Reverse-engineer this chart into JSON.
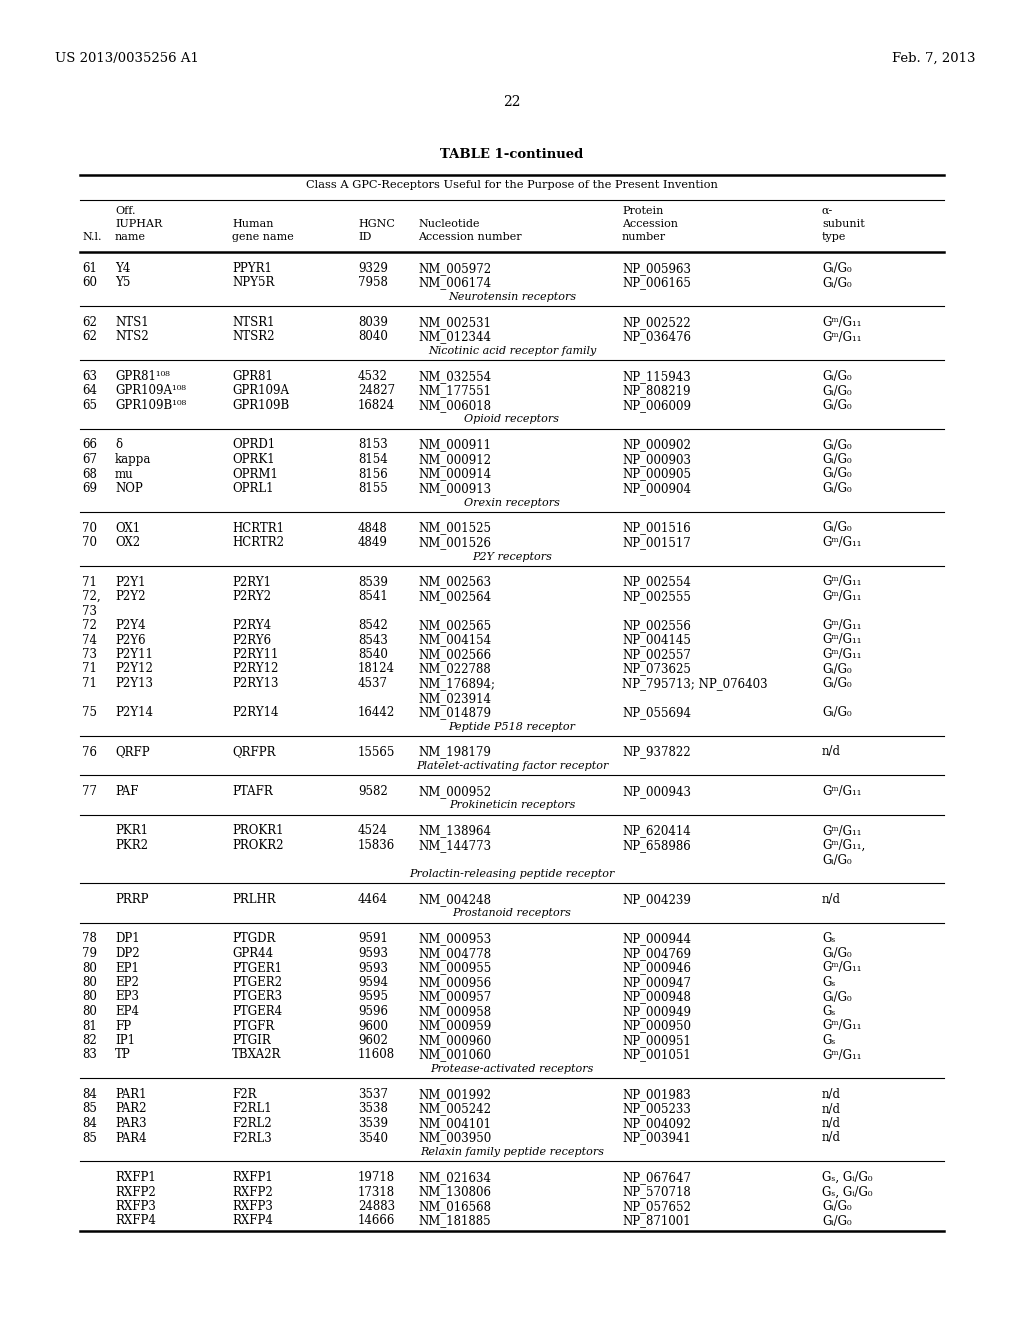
{
  "header_left": "US 2013/0035256 A1",
  "header_right": "Feb. 7, 2013",
  "page_number": "22",
  "table_title": "TABLE 1-continued",
  "table_subtitle": "Class A GPC-Receptors Useful for the Purpose of the Present Invention",
  "sections": [
    {
      "rows": [
        [
          "61",
          "Y4",
          "PPYR1",
          "9329",
          "NM_005972",
          "NP_005963",
          "Gᵢ/G₀"
        ],
        [
          "60",
          "Y5",
          "NPY5R",
          "7958",
          "NM_006174",
          "NP_006165",
          "Gᵢ/G₀"
        ]
      ],
      "section_label": "Neurotensin receptors"
    },
    {
      "rows": [
        [
          "62",
          "NTS1",
          "NTSR1",
          "8039",
          "NM_002531",
          "NP_002522",
          "Gᵐ/G₁₁"
        ],
        [
          "62",
          "NTS2",
          "NTSR2",
          "8040",
          "NM_012344",
          "NP_036476",
          "Gᵐ/G₁₁"
        ]
      ],
      "section_label": "Nicotinic acid receptor family"
    },
    {
      "rows": [
        [
          "63",
          "GPR81¹⁰⁸",
          "GPR81",
          "4532",
          "NM_032554",
          "NP_115943",
          "Gᵢ/G₀"
        ],
        [
          "64",
          "GPR109A¹⁰⁸",
          "GPR109A",
          "24827",
          "NM_177551",
          "NP_808219",
          "Gᵢ/G₀"
        ],
        [
          "65",
          "GPR109B¹⁰⁸",
          "GPR109B",
          "16824",
          "NM_006018",
          "NP_006009",
          "Gᵢ/G₀"
        ]
      ],
      "section_label": "Opioid receptors"
    },
    {
      "rows": [
        [
          "66",
          "δ",
          "OPRD1",
          "8153",
          "NM_000911",
          "NP_000902",
          "Gᵢ/G₀"
        ],
        [
          "67",
          "kappa",
          "OPRK1",
          "8154",
          "NM_000912",
          "NP_000903",
          "Gᵢ/G₀"
        ],
        [
          "68",
          "mu",
          "OPRM1",
          "8156",
          "NM_000914",
          "NP_000905",
          "Gᵢ/G₀"
        ],
        [
          "69",
          "NOP",
          "OPRL1",
          "8155",
          "NM_000913",
          "NP_000904",
          "Gᵢ/G₀"
        ]
      ],
      "section_label": "Orexin receptors"
    },
    {
      "rows": [
        [
          "70",
          "OX1",
          "HCRTR1",
          "4848",
          "NM_001525",
          "NP_001516",
          "Gᵢ/G₀"
        ],
        [
          "70",
          "OX2",
          "HCRTR2",
          "4849",
          "NM_001526",
          "NP_001517",
          "Gᵐ/G₁₁"
        ]
      ],
      "section_label": "P2Y receptors"
    },
    {
      "rows": [
        [
          "71",
          "P2Y1",
          "P2RY1",
          "8539",
          "NM_002563",
          "NP_002554",
          "Gᵐ/G₁₁"
        ],
        [
          "72,\n73",
          "P2Y2",
          "P2RY2",
          "8541",
          "NM_002564",
          "NP_002555",
          "Gᵐ/G₁₁"
        ],
        [
          "72",
          "P2Y4",
          "P2RY4",
          "8542",
          "NM_002565",
          "NP_002556",
          "Gᵐ/G₁₁"
        ],
        [
          "74",
          "P2Y6",
          "P2RY6",
          "8543",
          "NM_004154",
          "NP_004145",
          "Gᵐ/G₁₁"
        ],
        [
          "73",
          "P2Y11",
          "P2RY11",
          "8540",
          "NM_002566",
          "NP_002557",
          "Gᵐ/G₁₁"
        ],
        [
          "71",
          "P2Y12",
          "P2RY12",
          "18124",
          "NM_022788",
          "NP_073625",
          "Gᵢ/G₀"
        ],
        [
          "71",
          "P2Y13",
          "P2RY13",
          "4537",
          "NM_176894;\nNM_023914",
          "NP_795713; NP_076403",
          "Gᵢ/G₀"
        ],
        [
          "75",
          "P2Y14",
          "P2RY14",
          "16442",
          "NM_014879",
          "NP_055694",
          "Gᵢ/G₀"
        ]
      ],
      "section_label": "Peptide P518 receptor"
    },
    {
      "rows": [
        [
          "76",
          "QRFP",
          "QRFPR",
          "15565",
          "NM_198179",
          "NP_937822",
          "n/d"
        ]
      ],
      "section_label": "Platelet-activating factor receptor"
    },
    {
      "rows": [
        [
          "77",
          "PAF",
          "PTAFR",
          "9582",
          "NM_000952",
          "NP_000943",
          "Gᵐ/G₁₁"
        ]
      ],
      "section_label": "Prokineticin receptors"
    },
    {
      "rows": [
        [
          "",
          "PKR1",
          "PROKR1",
          "4524",
          "NM_138964",
          "NP_620414",
          "Gᵐ/G₁₁"
        ],
        [
          "",
          "PKR2",
          "PROKR2",
          "15836",
          "NM_144773",
          "NP_658986",
          "Gᵐ/G₁₁,\nGᵢ/G₀"
        ]
      ],
      "section_label": "Prolactin-releasing peptide receptor"
    },
    {
      "rows": [
        [
          "",
          "PRRP",
          "PRLHR",
          "4464",
          "NM_004248",
          "NP_004239",
          "n/d"
        ]
      ],
      "section_label": "Prostanoid receptors"
    },
    {
      "rows": [
        [
          "78",
          "DP1",
          "PTGDR",
          "9591",
          "NM_000953",
          "NP_000944",
          "Gₛ"
        ],
        [
          "79",
          "DP2",
          "GPR44",
          "9593",
          "NM_004778",
          "NP_004769",
          "Gᵢ/G₀"
        ],
        [
          "80",
          "EP1",
          "PTGER1",
          "9593",
          "NM_000955",
          "NP_000946",
          "Gᵐ/G₁₁"
        ],
        [
          "80",
          "EP2",
          "PTGER2",
          "9594",
          "NM_000956",
          "NP_000947",
          "Gₛ"
        ],
        [
          "80",
          "EP3",
          "PTGER3",
          "9595",
          "NM_000957",
          "NP_000948",
          "Gᵢ/G₀"
        ],
        [
          "80",
          "EP4",
          "PTGER4",
          "9596",
          "NM_000958",
          "NP_000949",
          "Gₛ"
        ],
        [
          "81",
          "FP",
          "PTGFR",
          "9600",
          "NM_000959",
          "NP_000950",
          "Gᵐ/G₁₁"
        ],
        [
          "82",
          "IP1",
          "PTGIR",
          "9602",
          "NM_000960",
          "NP_000951",
          "Gₛ"
        ],
        [
          "83",
          "TP",
          "TBXA2R",
          "11608",
          "NM_001060",
          "NP_001051",
          "Gᵐ/G₁₁"
        ]
      ],
      "section_label": "Protease-activated receptors"
    },
    {
      "rows": [
        [
          "84",
          "PAR1",
          "F2R",
          "3537",
          "NM_001992",
          "NP_001983",
          "n/d"
        ],
        [
          "85",
          "PAR2",
          "F2RL1",
          "3538",
          "NM_005242",
          "NP_005233",
          "n/d"
        ],
        [
          "84",
          "PAR3",
          "F2RL2",
          "3539",
          "NM_004101",
          "NP_004092",
          "n/d"
        ],
        [
          "85",
          "PAR4",
          "F2RL3",
          "3540",
          "NM_003950",
          "NP_003941",
          "n/d"
        ]
      ],
      "section_label": "Relaxin family peptide receptors"
    },
    {
      "rows": [
        [
          "",
          "RXFP1",
          "RXFP1",
          "19718",
          "NM_021634",
          "NP_067647",
          "Gₛ, Gᵢ/G₀"
        ],
        [
          "",
          "RXFP2",
          "RXFP2",
          "17318",
          "NM_130806",
          "NP_570718",
          "Gₛ, Gᵢ/G₀"
        ],
        [
          "",
          "RXFP3",
          "RXFP3",
          "24883",
          "NM_016568",
          "NP_057652",
          "Gᵢ/G₀"
        ],
        [
          "",
          "RXFP4",
          "RXFP4",
          "14666",
          "NM_181885",
          "NP_871001",
          "Gᵢ/G₀"
        ]
      ],
      "section_label": null
    }
  ]
}
